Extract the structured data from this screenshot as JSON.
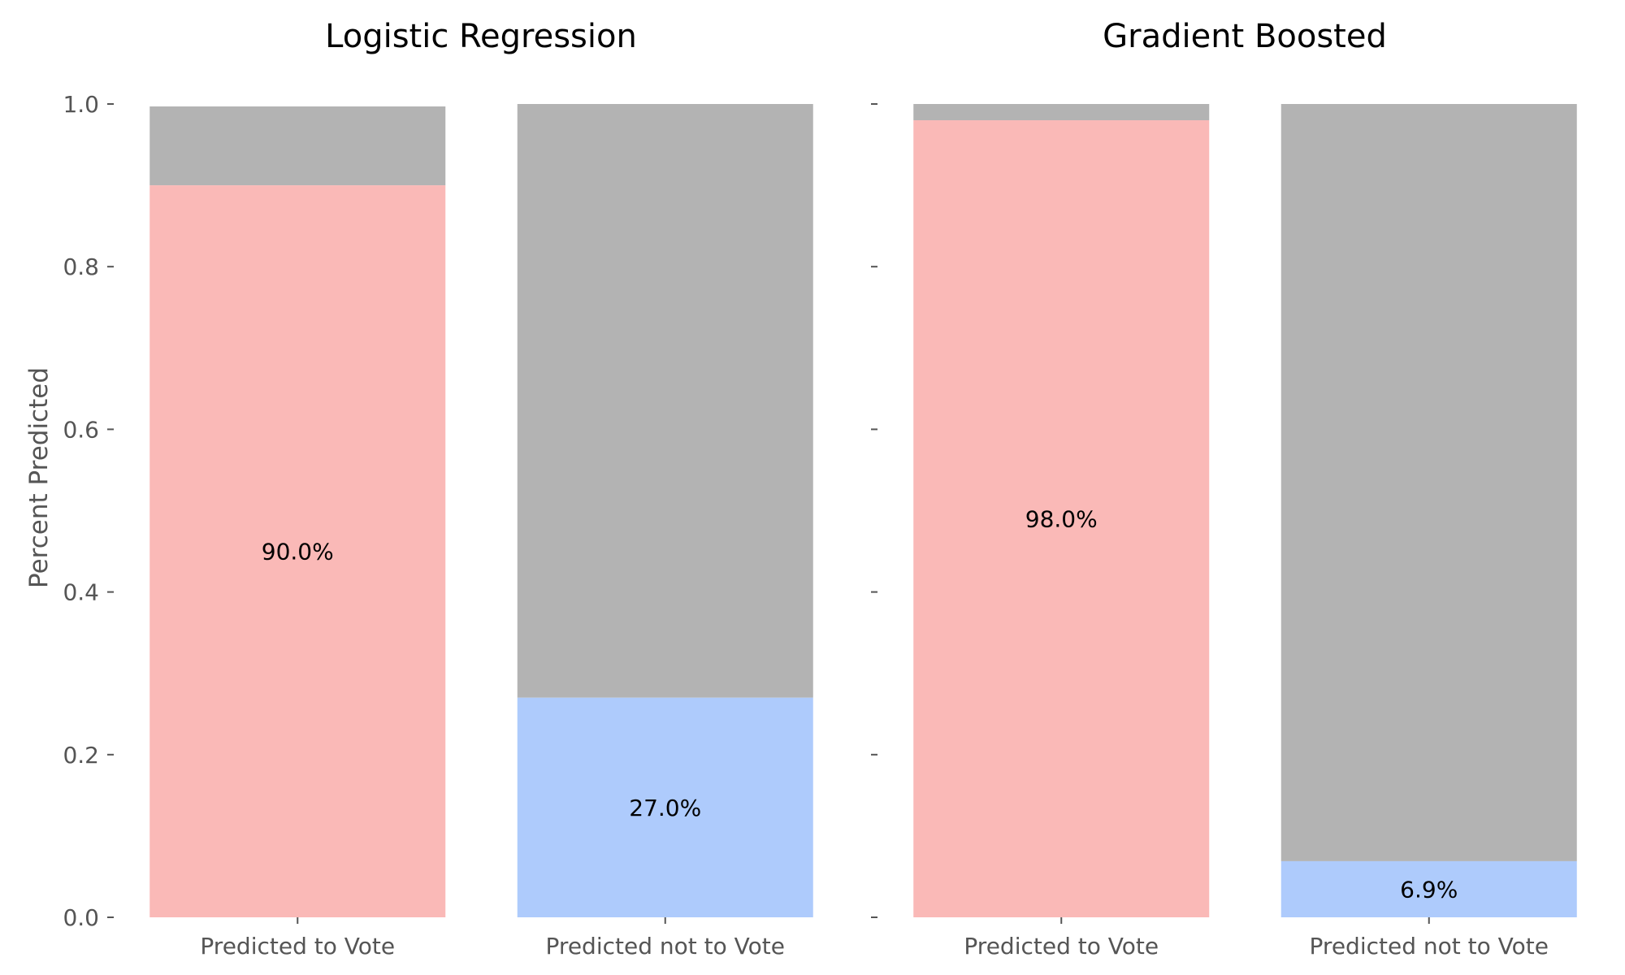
{
  "chart_data": [
    {
      "type": "bar",
      "stacked": true,
      "title": "Logistic Regression",
      "ylabel": "Percent Predicted",
      "ylim": [
        0,
        1.0
      ],
      "yticks": [
        "0.0",
        "0.2",
        "0.4",
        "0.6",
        "0.8",
        "1.0"
      ],
      "categories": [
        "Predicted to Vote",
        "Predicted not to Vote"
      ],
      "bars": [
        {
          "value": 0.9,
          "total": 0.997,
          "color": "#fab9b7",
          "label": "90.0%"
        },
        {
          "value": 0.27,
          "total": 1.0,
          "color": "#aecbfc",
          "label": "27.0%"
        }
      ],
      "remainder_color": "#b3b3b3",
      "grid": false
    },
    {
      "type": "bar",
      "stacked": true,
      "title": "Gradient Boosted",
      "ylim": [
        0,
        1.0
      ],
      "categories": [
        "Predicted to Vote",
        "Predicted not to Vote"
      ],
      "bars": [
        {
          "value": 0.98,
          "total": 1.0,
          "color": "#fab9b7",
          "label": "98.0%"
        },
        {
          "value": 0.069,
          "total": 1.0,
          "color": "#aecbfc",
          "label": "6.9%"
        }
      ],
      "remainder_color": "#b3b3b3",
      "grid": false
    }
  ]
}
